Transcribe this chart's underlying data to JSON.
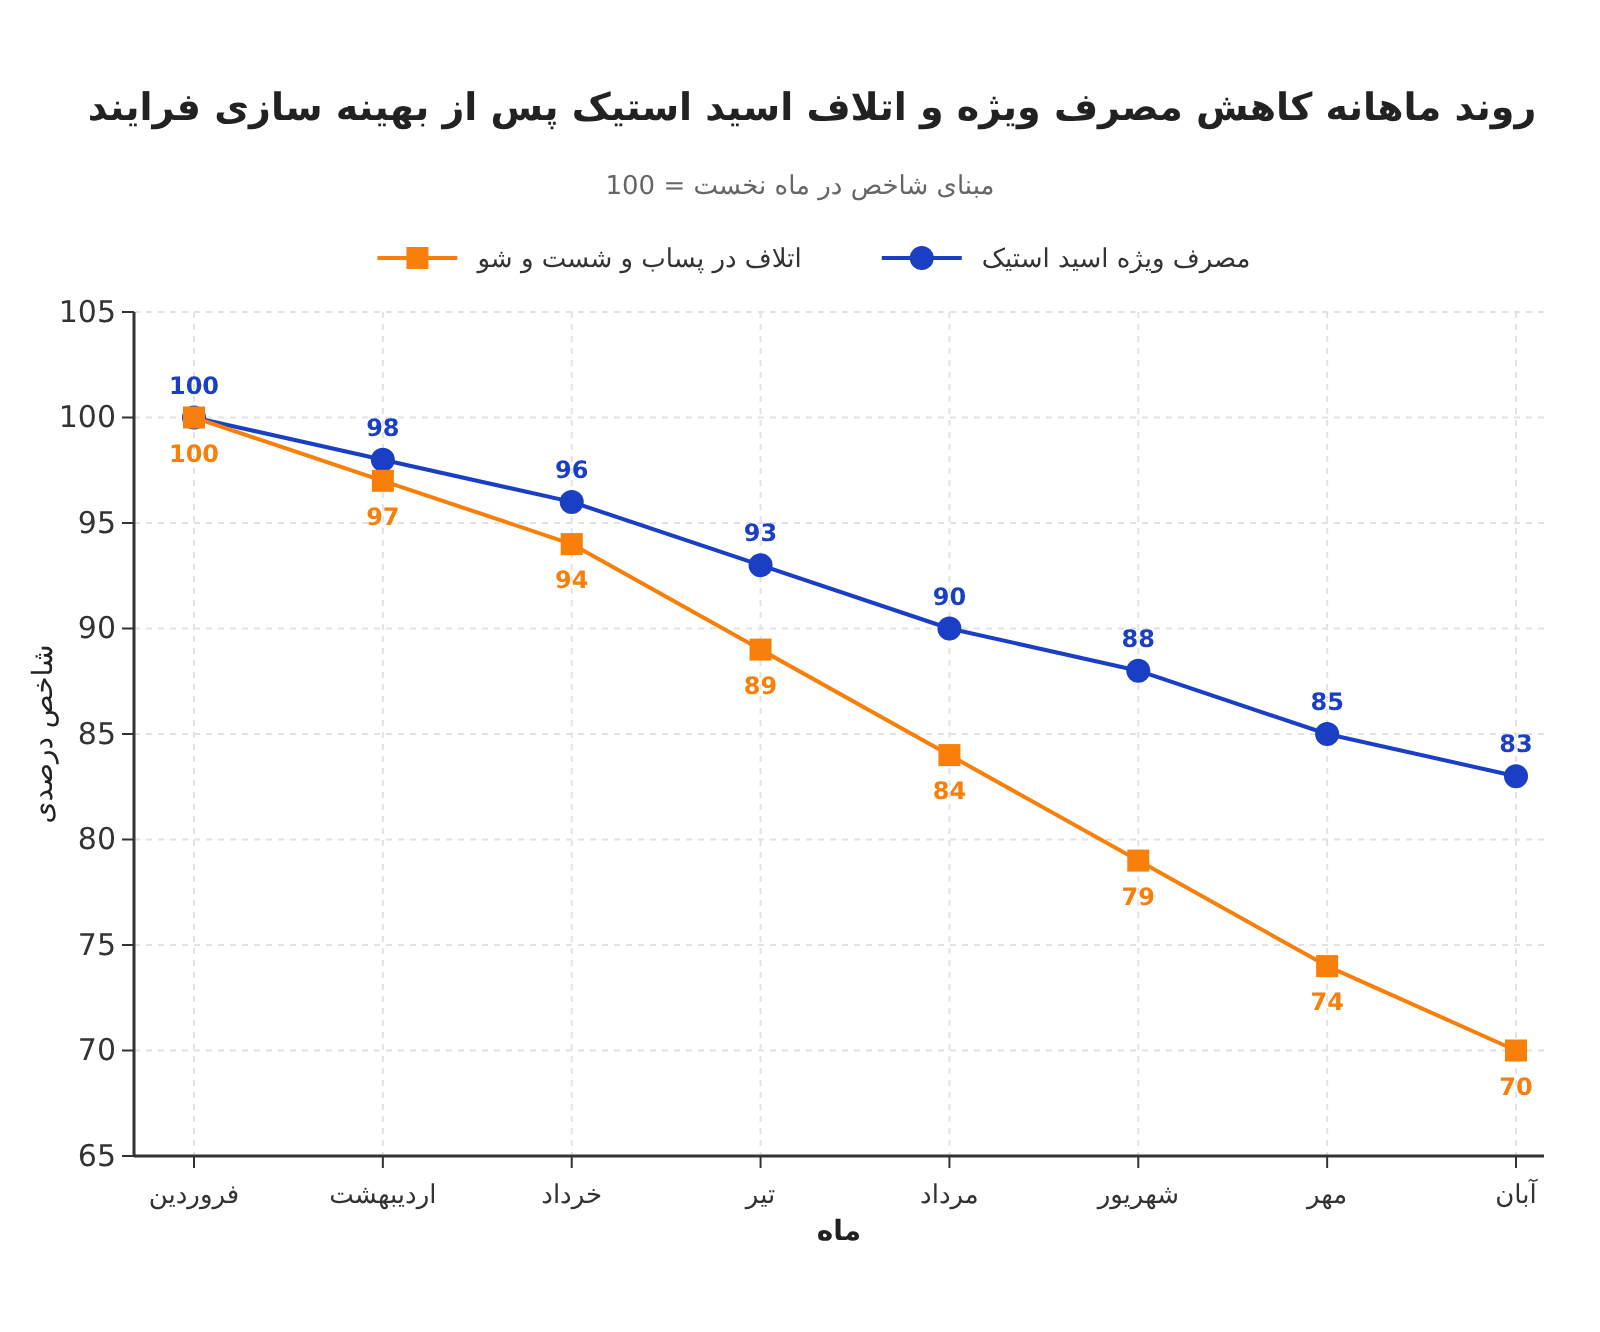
{
  "chart_data": {
    "type": "line",
    "title": "روند ماهانه کاهش مصرف ویژه و اتلاف اسید استیک پس از بهینه سازی فرایند",
    "subtitle": "مبنای شاخص در ماه نخست = 100",
    "xlabel": "ماه",
    "ylabel": "شاخص درصدی",
    "categories": [
      "فروردین",
      "اردیبهشت",
      "خرداد",
      "تیر",
      "مرداد",
      "شهریور",
      "مهر",
      "آبان"
    ],
    "series": [
      {
        "name": "مصرف ویژه اسید استیک",
        "color": "#1a3fc4",
        "marker": "circle",
        "values": [
          100,
          98,
          96,
          93,
          90,
          88,
          85,
          83
        ]
      },
      {
        "name": "اتلاف در پساب و شست و شو",
        "color": "#f77f0a",
        "marker": "square",
        "values": [
          100,
          97,
          94,
          89,
          84,
          79,
          74,
          70
        ]
      }
    ],
    "ylim": [
      65,
      105
    ],
    "yticks": [
      65,
      70,
      75,
      80,
      85,
      90,
      95,
      100,
      105
    ],
    "grid": true,
    "legend": "top",
    "data_labels": true,
    "line_style": "solid"
  }
}
